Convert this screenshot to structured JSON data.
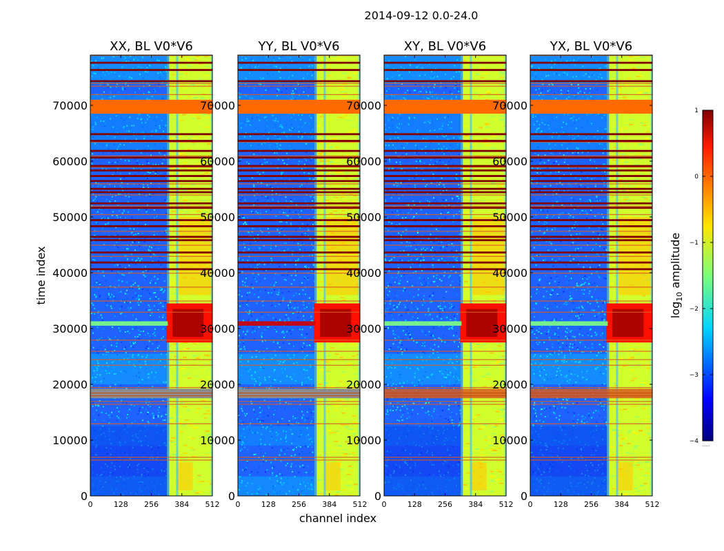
{
  "suptitle": "2014-09-12 0.0-24.0",
  "xlabel": "channel index",
  "ylabel": "time index",
  "colorbar": {
    "label_prefix": "log",
    "label_subscript": "10",
    "label_suffix": " amplitude",
    "ticks": [
      {
        "value": 1,
        "label": "1"
      },
      {
        "value": 0,
        "label": "0"
      },
      {
        "value": -1,
        "label": "−1"
      },
      {
        "value": -2,
        "label": "−2"
      },
      {
        "value": -3,
        "label": "−3"
      },
      {
        "value": -4,
        "label": "−4"
      }
    ],
    "range": [
      -4,
      1
    ],
    "colormap": "jet",
    "extra_label": "......"
  },
  "chart_data": [
    {
      "type": "heatmap",
      "title": "XX, BL V0*V6",
      "variant": "XX",
      "xlim": [
        0,
        512
      ],
      "ylim": [
        0,
        79000
      ],
      "xticks": [
        0,
        128,
        256,
        384,
        512
      ],
      "xtick_labels": [
        "0",
        "128",
        "256",
        "384",
        "512"
      ],
      "yticks": [
        0,
        10000,
        20000,
        30000,
        40000,
        50000,
        60000,
        70000
      ],
      "ytick_labels": [
        "0",
        "10000",
        "20000",
        "30000",
        "40000",
        "50000",
        "60000",
        "70000"
      ],
      "value_units": "log10 amplitude"
    },
    {
      "type": "heatmap",
      "title": "YY, BL V0*V6",
      "variant": "YY",
      "xlim": [
        0,
        512
      ],
      "ylim": [
        0,
        79000
      ],
      "xticks": [
        0,
        128,
        256,
        384,
        512
      ],
      "xtick_labels": [
        "0",
        "128",
        "256",
        "384",
        "512"
      ],
      "yticks": [
        0,
        10000,
        20000,
        30000,
        40000,
        50000,
        60000,
        70000
      ],
      "ytick_labels": [
        "0",
        "10000",
        "20000",
        "30000",
        "40000",
        "50000",
        "60000",
        "70000"
      ],
      "value_units": "log10 amplitude"
    },
    {
      "type": "heatmap",
      "title": "XY, BL V0*V6",
      "variant": "XY",
      "xlim": [
        0,
        512
      ],
      "ylim": [
        0,
        79000
      ],
      "xticks": [
        0,
        128,
        256,
        384,
        512
      ],
      "xtick_labels": [
        "0",
        "128",
        "256",
        "384",
        "512"
      ],
      "yticks": [
        0,
        10000,
        20000,
        30000,
        40000,
        50000,
        60000,
        70000
      ],
      "ytick_labels": [
        "0",
        "10000",
        "20000",
        "30000",
        "40000",
        "50000",
        "60000",
        "70000"
      ],
      "value_units": "log10 amplitude"
    },
    {
      "type": "heatmap",
      "title": "YX, BL V0*V6",
      "variant": "YX",
      "xlim": [
        0,
        512
      ],
      "ylim": [
        0,
        79000
      ],
      "xticks": [
        0,
        128,
        256,
        384,
        512
      ],
      "xtick_labels": [
        "0",
        "128",
        "256",
        "384",
        "512"
      ],
      "yticks": [
        0,
        10000,
        20000,
        30000,
        40000,
        50000,
        60000,
        70000
      ],
      "ytick_labels": [
        "0",
        "10000",
        "20000",
        "30000",
        "40000",
        "50000",
        "60000",
        "70000"
      ],
      "value_units": "log10 amplitude"
    }
  ]
}
